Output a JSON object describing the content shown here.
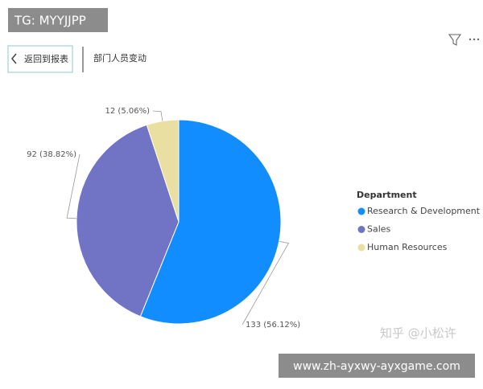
{
  "header": {
    "tag": "TG: MYYJJPP",
    "back_button": "返回到报表",
    "page_title": "部门人员变动"
  },
  "chart_data": {
    "type": "pie",
    "legend_title": "Department",
    "categories": [
      "Research & Development",
      "Sales",
      "Human Resources"
    ],
    "values": [
      133,
      92,
      12
    ],
    "value_labels": [
      "133 (56.12%)",
      "92 (38.82%)",
      "12 (5.06%)"
    ],
    "colors": [
      "#118dff",
      "#7173c4",
      "#e9dfa0"
    ]
  },
  "footer": {
    "watermark": "知乎 @小松许",
    "url": "www.zh-ayxwy-ayxgame.com"
  }
}
